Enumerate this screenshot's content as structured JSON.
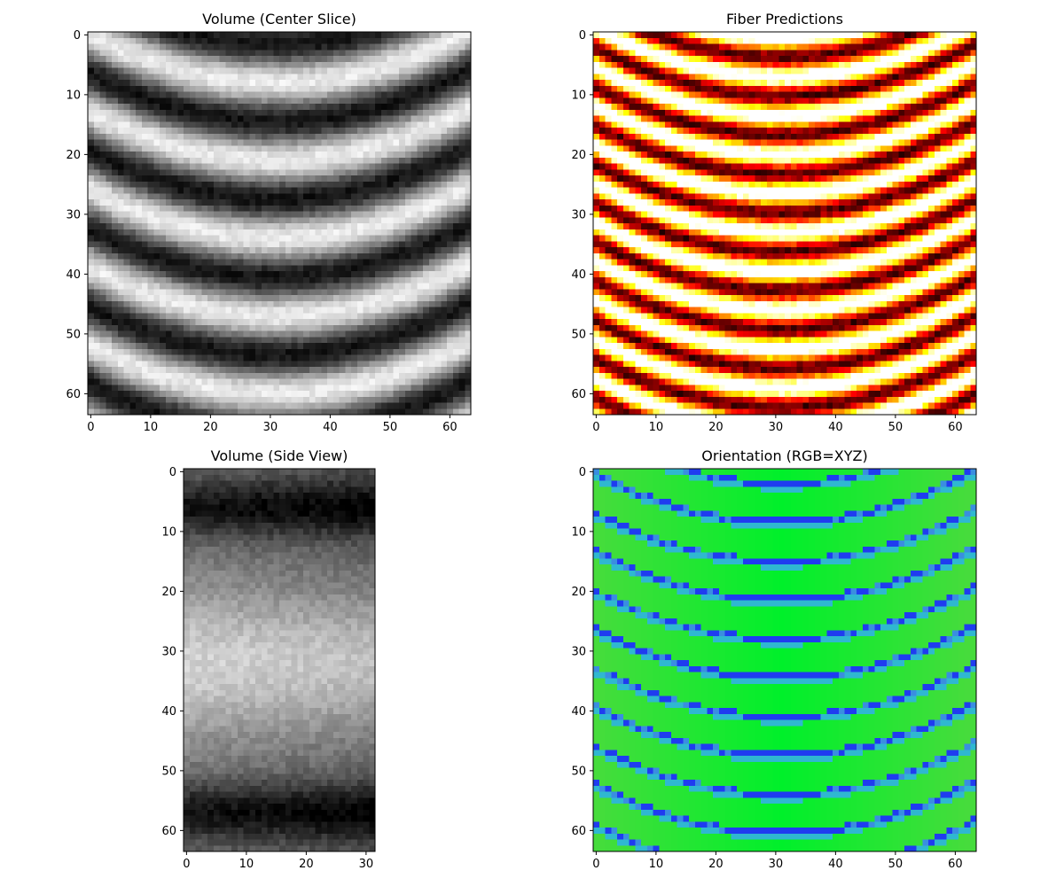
{
  "chart_data": [
    {
      "type": "heatmap",
      "title": "Volume (Center Slice)",
      "colormap": "gray",
      "rows": 64,
      "cols": 64,
      "xlim": [
        -0.5,
        63.5
      ],
      "ylim": [
        63.5,
        -0.5
      ],
      "x_ticks": [
        0,
        10,
        20,
        30,
        40,
        50,
        60
      ],
      "y_ticks": [
        0,
        10,
        20,
        30,
        40,
        50,
        60
      ],
      "description_values": {
        "pattern": "arched_bands",
        "band_period_rows": 13,
        "arch_apex_col": 31,
        "arch_depth_rows": 8,
        "value_range": [
          0,
          1
        ]
      }
    },
    {
      "type": "heatmap",
      "title": "Fiber Predictions",
      "colormap": "hot",
      "rows": 64,
      "cols": 64,
      "xlim": [
        -0.5,
        63.5
      ],
      "ylim": [
        63.5,
        -0.5
      ],
      "x_ticks": [
        0,
        10,
        20,
        30,
        40,
        50,
        60
      ],
      "y_ticks": [
        0,
        10,
        20,
        30,
        40,
        50,
        60
      ],
      "description_values": {
        "pattern": "arched_bands",
        "band_period_rows": 6.5,
        "arch_apex_col": 31,
        "arch_depth_rows": 8,
        "value_range": [
          0,
          1
        ]
      }
    },
    {
      "type": "heatmap",
      "title": "Volume (Side View)",
      "colormap": "gray",
      "rows": 64,
      "cols": 32,
      "xlim": [
        -0.5,
        31.5
      ],
      "ylim": [
        63.5,
        -0.5
      ],
      "x_ticks": [
        0,
        10,
        20,
        30
      ],
      "y_ticks": [
        0,
        10,
        20,
        30,
        40,
        50,
        60
      ],
      "description_values": {
        "pattern": "horizontal_gradient_bands",
        "dark_rows": [
          6,
          57
        ],
        "bright_row": 32,
        "value_range": [
          0,
          1
        ]
      }
    },
    {
      "type": "heatmap",
      "title": "Orientation (RGB=XYZ)",
      "colormap": "rgb",
      "rows": 64,
      "cols": 64,
      "xlim": [
        -0.5,
        63.5
      ],
      "ylim": [
        63.5,
        -0.5
      ],
      "x_ticks": [
        0,
        10,
        20,
        30,
        40,
        50,
        60
      ],
      "y_ticks": [
        0,
        10,
        20,
        30,
        40,
        50,
        60
      ],
      "description_values": {
        "pattern": "arched_lines_on_green",
        "band_period_rows": 6.5,
        "arch_apex_col": 31,
        "arch_depth_rows": 8,
        "base_color": "#3fe03a",
        "center_color": "#00f02a",
        "line_color": "#1f3cf0"
      }
    }
  ]
}
